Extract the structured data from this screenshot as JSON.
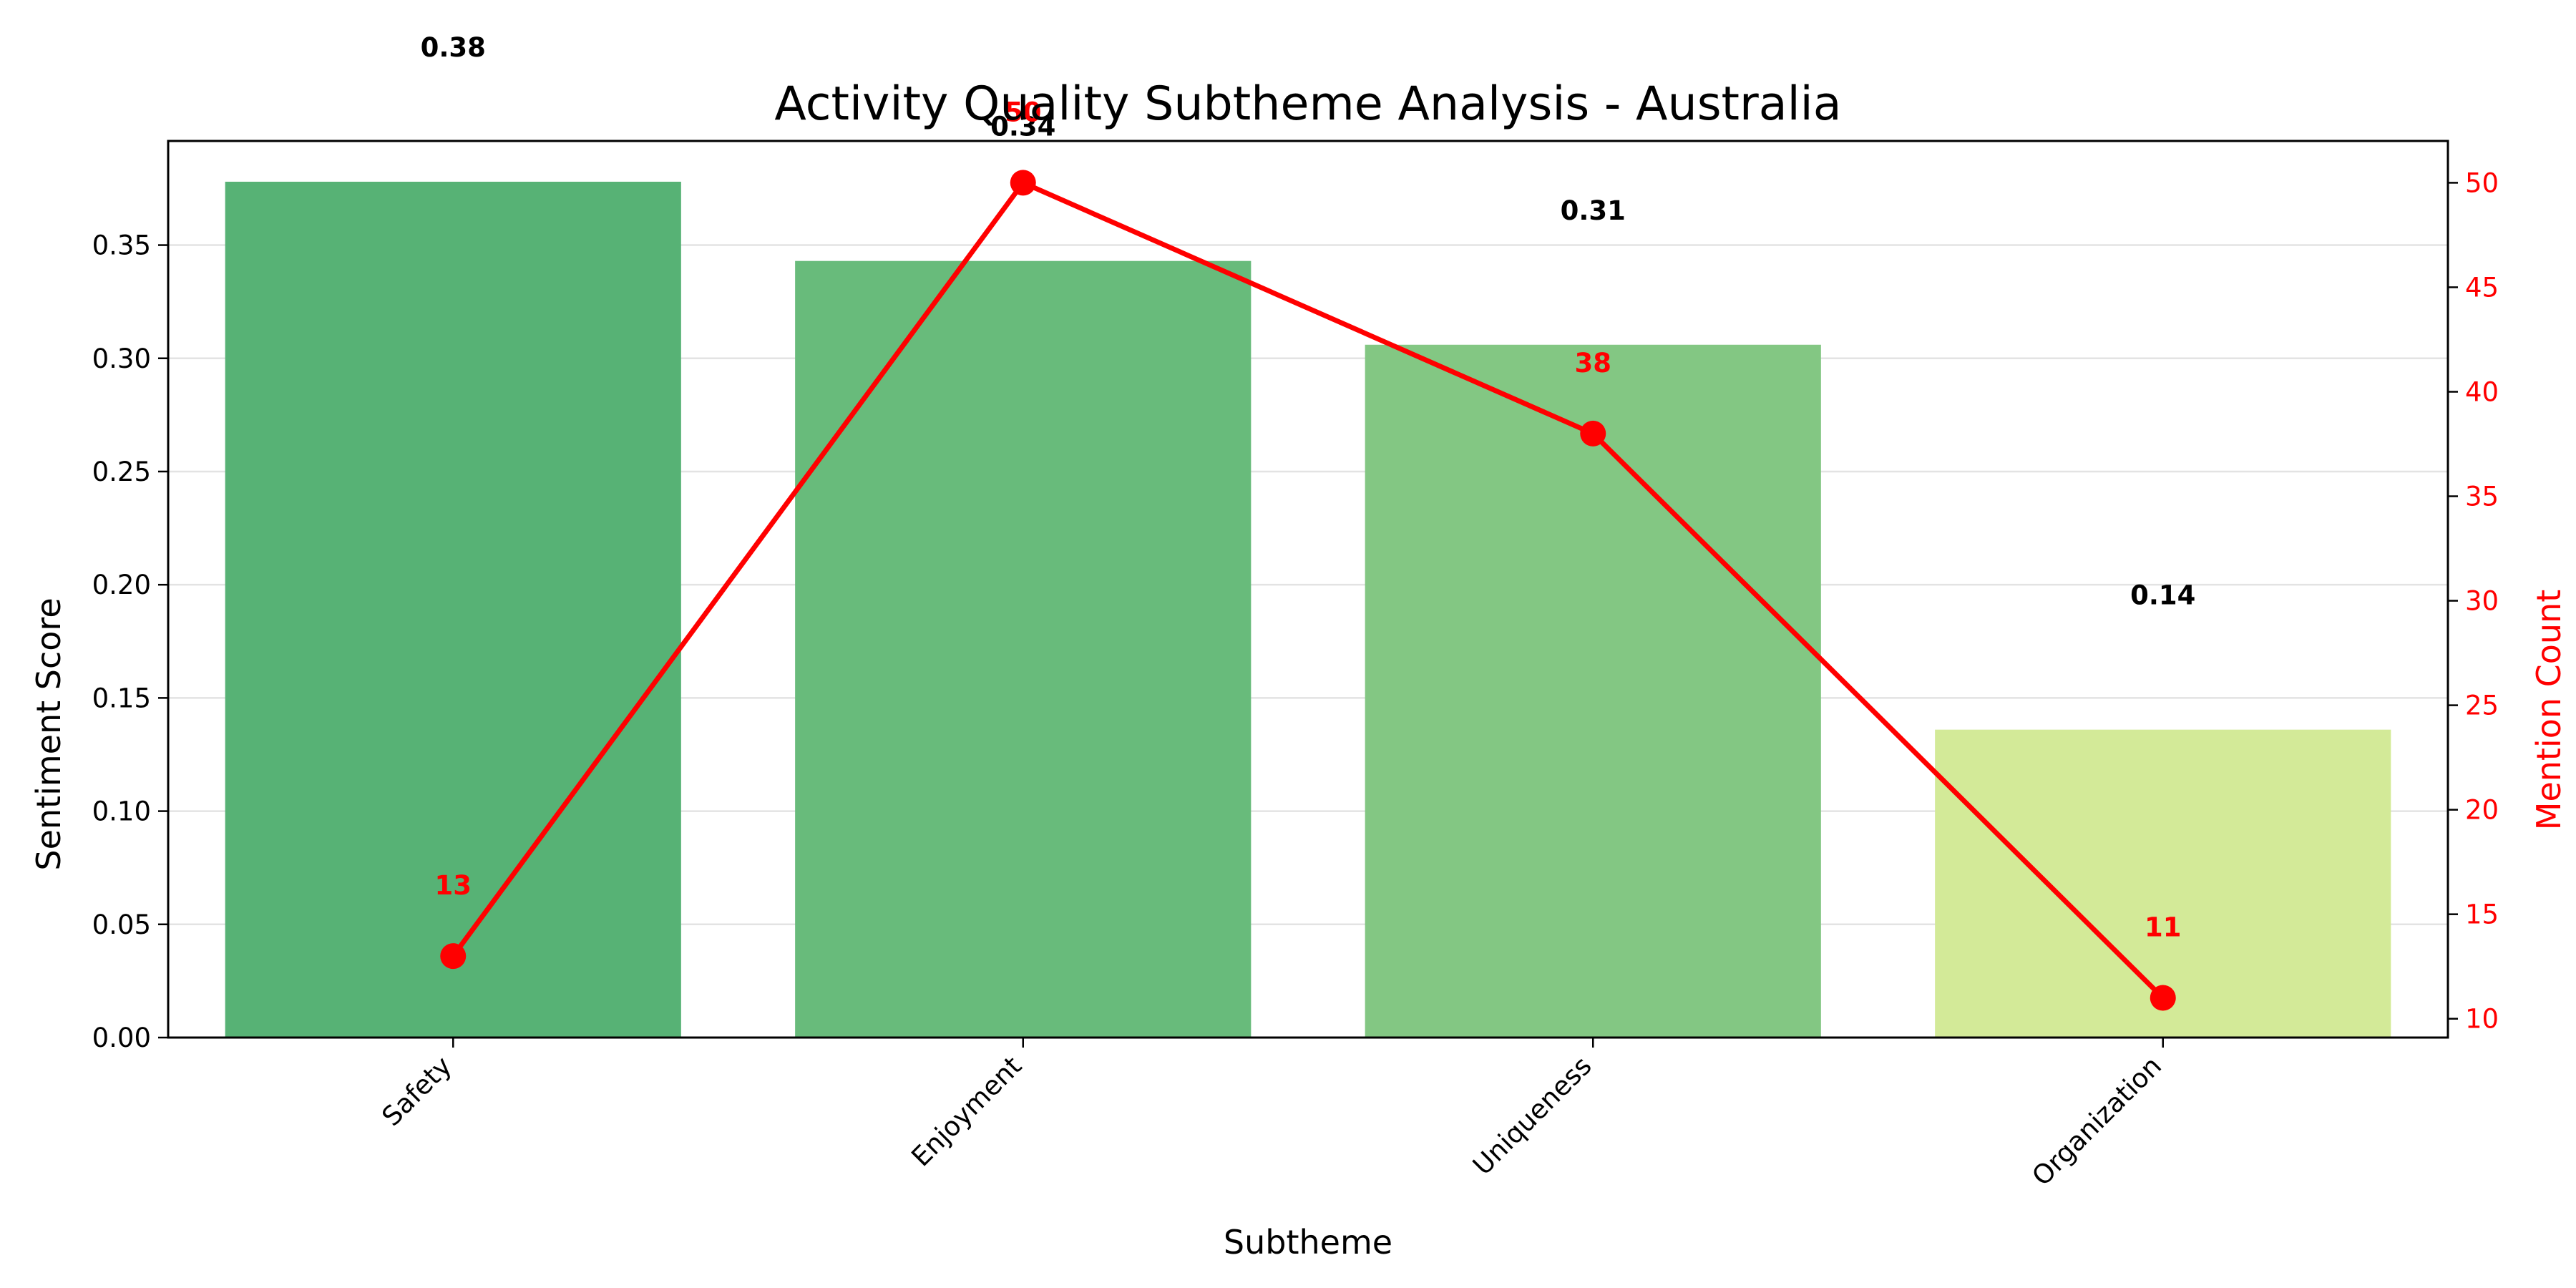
{
  "chart_data": {
    "type": "bar",
    "title": "Activity Quality Subtheme Analysis - Australia",
    "xlabel": "Subtheme",
    "ylabel": "Sentiment Score",
    "y2label": "Mention Count",
    "categories": [
      "Safety",
      "Enjoyment",
      "Uniqueness",
      "Organization"
    ],
    "series": [
      {
        "name": "",
        "type": "bar",
        "axis": "left",
        "values": [
          0.378,
          0.343,
          0.306,
          0.136
        ],
        "labels": [
          "0.38",
          "0.34",
          "0.31",
          "0.14"
        ],
        "colors": [
          "#57b275",
          "#68bb7b",
          "#83c783",
          "#d3ea98"
        ]
      },
      {
        "name": "",
        "type": "line",
        "axis": "right",
        "values": [
          13,
          50,
          38,
          11
        ],
        "labels": [
          "13",
          "50",
          "38",
          "11"
        ],
        "color": "#ff0000"
      }
    ],
    "ylim": [
      0,
      0.396
    ],
    "y2lim": [
      9.1,
      52.0
    ],
    "yticks": [
      "0.00",
      "0.05",
      "0.10",
      "0.15",
      "0.20",
      "0.25",
      "0.30",
      "0.35"
    ],
    "y2ticks": [
      "10",
      "15",
      "20",
      "25",
      "30",
      "35",
      "40",
      "45",
      "50"
    ],
    "grid": true,
    "legend": "none"
  }
}
